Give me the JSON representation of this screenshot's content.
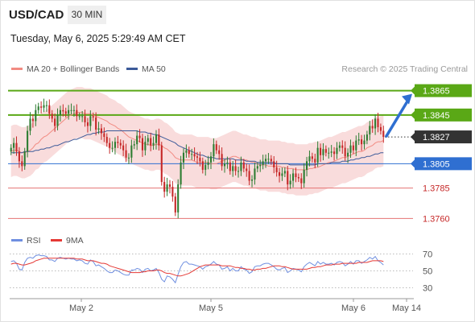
{
  "header": {
    "pair": "USD/CAD",
    "timeframe": "30 MIN"
  },
  "timestamp": "Tuesday, May 6, 2025 5:29:49 AM CET",
  "legend": {
    "ma20_label": "MA 20 + Bollinger Bands",
    "ma50_label": "MA 50",
    "rsi_label": "RSI",
    "rsi_ma_label": "9MA"
  },
  "copyright": "Research © 2025 Trading Central",
  "colors": {
    "up_candle": "#2e7d32",
    "down_candle": "#c62828",
    "bollinger_fill": "#f9dcdc",
    "ma20": "#f28b82",
    "ma50": "#3c5a99",
    "resistance": "#5aa816",
    "pivot": "#2f6fd1",
    "support": "#e57373",
    "last_price": "#333333",
    "forecast_arrow": "#2f6fd1",
    "rsi": "#6f8fe0",
    "rsi_ma": "#e53935"
  },
  "chart_data": [
    {
      "type": "candlestick",
      "y_min": 1.3755,
      "y_max": 1.3872,
      "x_ticks": [
        "May 2",
        "May 5",
        "May 6",
        "May 14"
      ],
      "last_price": 1.3827,
      "levels": [
        {
          "value": 1.3865,
          "label": "1.3865",
          "kind": "resistance"
        },
        {
          "value": 1.3845,
          "label": "1.3845",
          "kind": "resistance"
        },
        {
          "value": 1.3827,
          "label": "1.3827",
          "kind": "last"
        },
        {
          "value": 1.3805,
          "label": "1.3805",
          "kind": "pivot"
        },
        {
          "value": 1.3785,
          "label": "1.3785",
          "kind": "support"
        },
        {
          "value": 1.376,
          "label": "1.3760",
          "kind": "support"
        }
      ],
      "close": [
        1.3818,
        1.3822,
        1.3815,
        1.3807,
        1.3803,
        1.3815,
        1.3832,
        1.3842,
        1.384,
        1.3849,
        1.3852,
        1.3851,
        1.3853,
        1.3853,
        1.3846,
        1.3842,
        1.3836,
        1.3845,
        1.3849,
        1.3848,
        1.3846,
        1.3849,
        1.3849,
        1.3849,
        1.3844,
        1.3844,
        1.3844,
        1.3839,
        1.3836,
        1.3844,
        1.3843,
        1.3833,
        1.3834,
        1.383,
        1.3827,
        1.3822,
        1.3818,
        1.3818,
        1.3823,
        1.3822,
        1.382,
        1.3816,
        1.381,
        1.381,
        1.382,
        1.3821,
        1.3828,
        1.3826,
        1.3816,
        1.3823,
        1.3826,
        1.382,
        1.3822,
        1.3829,
        1.382,
        1.379,
        1.3782,
        1.3788,
        1.3786,
        1.3778,
        1.3765,
        1.3788,
        1.3806,
        1.3814,
        1.3816,
        1.3813,
        1.3813,
        1.3811,
        1.381,
        1.3807,
        1.38,
        1.3804,
        1.3806,
        1.3811,
        1.3821,
        1.3816,
        1.3813,
        1.3803,
        1.3805,
        1.3806,
        1.3799,
        1.3803,
        1.3799,
        1.3799,
        1.3806,
        1.3801,
        1.3799,
        1.3791,
        1.3792,
        1.3801,
        1.3803,
        1.3804,
        1.3807,
        1.3809,
        1.3809,
        1.3807,
        1.3802,
        1.3798,
        1.3795,
        1.3797,
        1.3799,
        1.3788,
        1.3791,
        1.3797,
        1.3794,
        1.3793,
        1.3789,
        1.38,
        1.3807,
        1.3811,
        1.3809,
        1.3806,
        1.3818,
        1.3812,
        1.3817,
        1.3814,
        1.3814,
        1.3815,
        1.3813,
        1.3818,
        1.382,
        1.3818,
        1.3811,
        1.3814,
        1.382,
        1.3816,
        1.3824,
        1.3825,
        1.3821,
        1.3824,
        1.3829,
        1.3836,
        1.3834,
        1.3842,
        1.3835,
        1.3832,
        1.3827
      ],
      "ma20": [
        1.3815,
        1.3816,
        1.3816,
        1.3815,
        1.3814,
        1.3814,
        1.3815,
        1.3816,
        1.3818,
        1.3821,
        1.3822,
        1.3825,
        1.3827,
        1.3828,
        1.383,
        1.3832,
        1.3834,
        1.3836,
        1.3838,
        1.384,
        1.3842,
        1.3844,
        1.3845,
        1.3846,
        1.3847,
        1.3847,
        1.3847,
        1.3846,
        1.3846,
        1.3846,
        1.3845,
        1.3844,
        1.3843,
        1.3842,
        1.3841,
        1.384,
        1.3838,
        1.3837,
        1.3836,
        1.3834,
        1.3833,
        1.3831,
        1.3829,
        1.3827,
        1.3826,
        1.3825,
        1.3824,
        1.3823,
        1.3822,
        1.3821,
        1.3821,
        1.382,
        1.382,
        1.3821,
        1.3821,
        1.382,
        1.3818,
        1.3817,
        1.3815,
        1.3813,
        1.381,
        1.3809,
        1.3808,
        1.3808,
        1.3808,
        1.3808,
        1.3808,
        1.3807,
        1.3806,
        1.3806,
        1.3806,
        1.3806,
        1.3806,
        1.3805,
        1.3805,
        1.3805,
        1.3806,
        1.3807,
        1.3808,
        1.3809,
        1.381,
        1.3811,
        1.3811,
        1.381,
        1.3809,
        1.3808,
        1.3808,
        1.3807,
        1.3806,
        1.3806,
        1.3805,
        1.3804,
        1.3804,
        1.3804,
        1.3803,
        1.3803,
        1.3803,
        1.3803,
        1.3803,
        1.3802,
        1.3802,
        1.3801,
        1.3801,
        1.3801,
        1.38,
        1.38,
        1.38,
        1.38,
        1.38,
        1.3801,
        1.3801,
        1.3802,
        1.3802,
        1.3803,
        1.3804,
        1.3805,
        1.3806,
        1.3806,
        1.3807,
        1.3808,
        1.3809,
        1.381,
        1.381,
        1.3811,
        1.3812,
        1.3813,
        1.3814,
        1.3815,
        1.3815,
        1.3816,
        1.3818,
        1.3819,
        1.382,
        1.3822,
        1.3823,
        1.3823,
        1.3824
      ],
      "ma50": [
        1.3814,
        1.3814,
        1.3814,
        1.3814,
        1.3814,
        1.3815,
        1.3815,
        1.3815,
        1.3815,
        1.3816,
        1.3816,
        1.3817,
        1.3817,
        1.3818,
        1.3818,
        1.3819,
        1.382,
        1.382,
        1.3821,
        1.3822,
        1.3823,
        1.3823,
        1.3824,
        1.3825,
        1.3825,
        1.3826,
        1.3827,
        1.3828,
        1.3829,
        1.3829,
        1.383,
        1.383,
        1.3831,
        1.3831,
        1.3831,
        1.3832,
        1.3832,
        1.3832,
        1.3832,
        1.3832,
        1.3832,
        1.3832,
        1.3832,
        1.3832,
        1.3832,
        1.3832,
        1.3832,
        1.3831,
        1.3831,
        1.3831,
        1.383,
        1.383,
        1.3829,
        1.3829,
        1.3828,
        1.3827,
        1.3826,
        1.3825,
        1.3824,
        1.3823,
        1.3822,
        1.382,
        1.3819,
        1.3818,
        1.3817,
        1.3816,
        1.3815,
        1.3814,
        1.3813,
        1.3812,
        1.3812,
        1.3811,
        1.381,
        1.381,
        1.381,
        1.3809,
        1.3809,
        1.3809,
        1.3809,
        1.3809,
        1.3809,
        1.3809,
        1.3808,
        1.3808,
        1.3808,
        1.3808,
        1.3807,
        1.3807,
        1.3807,
        1.3807,
        1.3806,
        1.3806,
        1.3806,
        1.3806,
        1.3806,
        1.3806,
        1.3806,
        1.3805,
        1.3805,
        1.3805,
        1.3805,
        1.3805,
        1.3804,
        1.3804,
        1.3804,
        1.3804,
        1.3804,
        1.3804,
        1.3804,
        1.3804,
        1.3804,
        1.3804,
        1.3805,
        1.3805,
        1.3805,
        1.3805,
        1.3805,
        1.3806,
        1.3806,
        1.3806,
        1.3806,
        1.3807,
        1.3807,
        1.3807,
        1.3808,
        1.3808,
        1.3809,
        1.3809,
        1.381,
        1.381,
        1.3811,
        1.3811,
        1.3812,
        1.3813,
        1.3813,
        1.3814,
        1.3814
      ],
      "bb_width": 0.0021
    },
    {
      "type": "line",
      "y_min": 20,
      "y_max": 80,
      "y_ticks": [
        70,
        50,
        30
      ],
      "rsi": [
        61,
        62,
        59,
        52,
        51,
        60,
        65,
        66,
        65,
        68,
        69,
        68,
        68,
        67,
        63,
        63,
        61,
        65,
        66,
        65,
        64,
        65,
        64,
        64,
        62,
        63,
        62,
        59,
        58,
        63,
        61,
        56,
        57,
        55,
        53,
        50,
        48,
        48,
        51,
        50,
        48,
        46,
        45,
        45,
        51,
        51,
        53,
        52,
        48,
        52,
        53,
        50,
        51,
        53,
        48,
        40,
        37,
        44,
        43,
        40,
        36,
        46,
        55,
        60,
        61,
        58,
        58,
        57,
        56,
        55,
        52,
        55,
        56,
        58,
        61,
        58,
        57,
        52,
        53,
        55,
        50,
        53,
        50,
        50,
        55,
        52,
        51,
        47,
        49,
        55,
        56,
        56,
        58,
        59,
        59,
        57,
        55,
        52,
        51,
        53,
        54,
        48,
        50,
        53,
        52,
        51,
        49,
        55,
        58,
        60,
        58,
        56,
        61,
        58,
        60,
        58,
        58,
        59,
        57,
        60,
        61,
        60,
        56,
        58,
        61,
        58,
        62,
        62,
        59,
        61,
        63,
        66,
        64,
        67,
        62,
        60,
        57
      ],
      "rsi_ma": [
        58,
        59,
        59,
        58,
        57,
        57,
        58,
        59,
        60,
        62,
        63,
        64,
        65,
        65,
        65,
        65,
        65,
        65,
        65,
        65,
        65,
        65,
        65,
        65,
        64,
        64,
        64,
        63,
        62,
        62,
        62,
        61,
        60,
        59,
        59,
        58,
        56,
        55,
        54,
        53,
        52,
        51,
        50,
        49,
        48,
        48,
        48,
        48,
        49,
        49,
        50,
        50,
        50,
        51,
        51,
        50,
        48,
        47,
        47,
        46,
        45,
        44,
        44,
        45,
        46,
        47,
        49,
        51,
        53,
        55,
        56,
        57,
        57,
        57,
        57,
        57,
        57,
        56,
        56,
        56,
        56,
        55,
        54,
        54,
        53,
        53,
        52,
        52,
        51,
        51,
        52,
        52,
        53,
        53,
        54,
        55,
        56,
        56,
        56,
        55,
        55,
        54,
        53,
        52,
        52,
        52,
        52,
        52,
        52,
        53,
        54,
        54,
        55,
        55,
        56,
        57,
        57,
        57,
        58,
        58,
        58,
        59,
        59,
        59,
        59,
        59,
        59,
        60,
        60,
        60,
        60,
        61,
        62,
        62,
        62,
        62,
        61
      ]
    }
  ]
}
